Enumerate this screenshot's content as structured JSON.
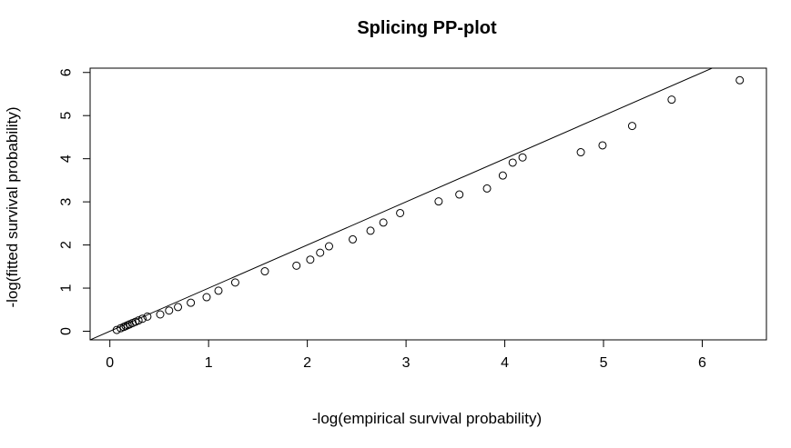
{
  "chart_data": {
    "type": "scatter",
    "title": "Splicing PP-plot",
    "xlabel": "-log(empirical survival probability)",
    "ylabel": "-log(fitted survival probability)",
    "xlim": [
      -0.2,
      6.65
    ],
    "ylim": [
      -0.2,
      6.1
    ],
    "x_ticks": [
      0,
      1,
      2,
      3,
      4,
      5,
      6
    ],
    "x_tick_labels": [
      "0",
      "1",
      "2",
      "3",
      "4",
      "5",
      "6"
    ],
    "y_ticks": [
      0,
      1,
      2,
      3,
      4,
      5,
      6
    ],
    "y_tick_labels": [
      "0",
      "1",
      "2",
      "3",
      "4",
      "5",
      "6"
    ],
    "grid": false,
    "legend": "none",
    "reference_line": {
      "intercept": 0,
      "slope": 1
    },
    "colors": {
      "points": "#000000",
      "line": "#000000",
      "axes": "#000000",
      "background": "#ffffff"
    },
    "points": [
      [
        0.07,
        0.03
      ],
      [
        0.11,
        0.07
      ],
      [
        0.14,
        0.1
      ],
      [
        0.16,
        0.12
      ],
      [
        0.18,
        0.14
      ],
      [
        0.2,
        0.16
      ],
      [
        0.23,
        0.19
      ],
      [
        0.26,
        0.22
      ],
      [
        0.29,
        0.25
      ],
      [
        0.33,
        0.29
      ],
      [
        0.38,
        0.34
      ],
      [
        0.51,
        0.39
      ],
      [
        0.6,
        0.48
      ],
      [
        0.69,
        0.56
      ],
      [
        0.82,
        0.66
      ],
      [
        0.98,
        0.79
      ],
      [
        1.1,
        0.94
      ],
      [
        1.27,
        1.13
      ],
      [
        1.57,
        1.39
      ],
      [
        1.89,
        1.52
      ],
      [
        2.03,
        1.66
      ],
      [
        2.13,
        1.82
      ],
      [
        2.22,
        1.97
      ],
      [
        2.46,
        2.13
      ],
      [
        2.64,
        2.33
      ],
      [
        2.77,
        2.52
      ],
      [
        2.94,
        2.74
      ],
      [
        3.33,
        3.01
      ],
      [
        3.54,
        3.17
      ],
      [
        3.82,
        3.31
      ],
      [
        3.98,
        3.61
      ],
      [
        4.08,
        3.91
      ],
      [
        4.18,
        4.03
      ],
      [
        4.77,
        4.15
      ],
      [
        4.99,
        4.31
      ],
      [
        5.29,
        4.76
      ],
      [
        5.69,
        5.37
      ],
      [
        6.38,
        5.82
      ]
    ]
  }
}
